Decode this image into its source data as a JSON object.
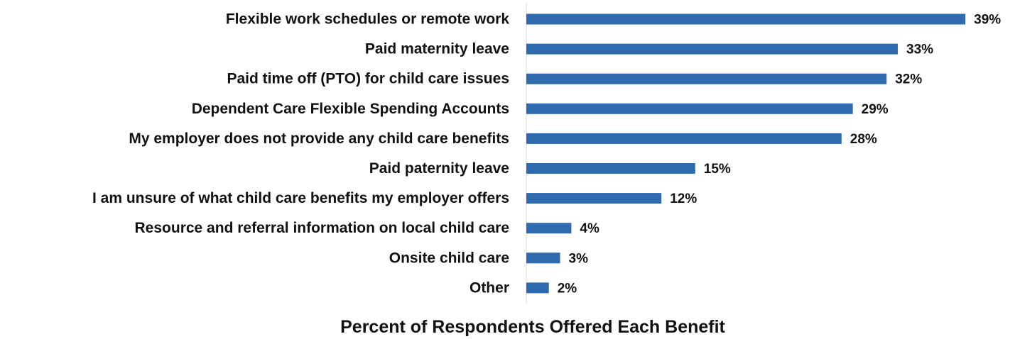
{
  "chart_data": {
    "type": "bar",
    "orientation": "horizontal",
    "categories": [
      "Flexible work schedules or remote work",
      "Paid maternity leave",
      "Paid time off (PTO) for child care issues",
      "Dependent Care Flexible Spending Accounts",
      "My employer does not provide any child care benefits",
      "Paid paternity leave",
      "I am unsure of what child care benefits my employer offers",
      "Resource and referral information on local child care",
      "Onsite child care",
      "Other"
    ],
    "values": [
      39,
      33,
      32,
      29,
      28,
      15,
      12,
      4,
      3,
      2
    ],
    "value_labels": [
      "39%",
      "33%",
      "32%",
      "29%",
      "28%",
      "15%",
      "12%",
      "4%",
      "3%",
      "2%"
    ],
    "title": "",
    "xlabel": "Percent of Respondents Offered Each Benefit",
    "ylabel": "",
    "xlim": [
      0,
      40
    ],
    "grid": false,
    "legend": "none",
    "bar_color": "#2e6aad",
    "axis_line_color": "#d9d9d9"
  }
}
